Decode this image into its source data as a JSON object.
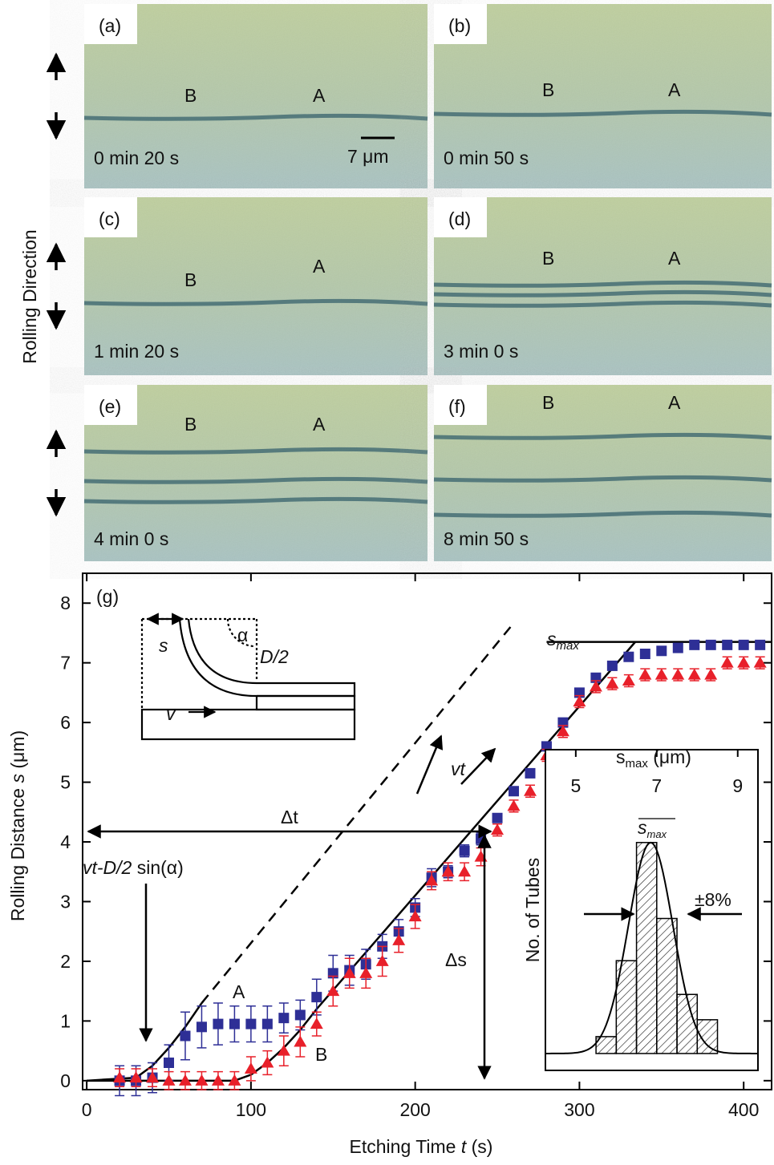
{
  "figure": {
    "side_label": "Rolling Direction",
    "panels": [
      {
        "label": "(a)",
        "time": "0 min 20 s",
        "markers": [
          "B",
          "A"
        ],
        "scale": "7 μm"
      },
      {
        "label": "(b)",
        "time": "0 min 50 s",
        "markers": [
          "B",
          "A"
        ]
      },
      {
        "label": "(c)",
        "time": "1 min 20 s",
        "markers": [
          "B",
          "A"
        ]
      },
      {
        "label": "(d)",
        "time": "3 min 0 s",
        "markers": [
          "B",
          "A"
        ]
      },
      {
        "label": "(e)",
        "time": "4 min 0 s",
        "markers": [
          "B",
          "A"
        ]
      },
      {
        "label": "(f)",
        "time": "8 min 50 s",
        "markers": [
          "B",
          "A"
        ]
      }
    ]
  },
  "schematic": {
    "s": "s",
    "alpha": "α",
    "half_d": "D/2",
    "v": "v"
  },
  "chart_data": [
    {
      "type": "scatter",
      "panel_label": "(g)",
      "xlabel": [
        "Etching Time ",
        "t",
        " (s)"
      ],
      "ylabel": [
        "Rolling Distance ",
        "s",
        " (μm)"
      ],
      "xlim": [
        -2.5,
        417
      ],
      "ylim": [
        -0.15,
        8.5
      ],
      "xticks": [
        0,
        100,
        200,
        300,
        400
      ],
      "yticks": [
        0,
        1,
        2,
        3,
        4,
        5,
        6,
        7,
        8
      ],
      "x": [
        20,
        30,
        40,
        50,
        60,
        70,
        80,
        90,
        100,
        110,
        120,
        130,
        140,
        150,
        160,
        170,
        180,
        190,
        200,
        210,
        220,
        230,
        240,
        250,
        260,
        270,
        280,
        290,
        300,
        310,
        320,
        330,
        340,
        350,
        360,
        370,
        380,
        390,
        400,
        410
      ],
      "series": [
        {
          "name": "A",
          "color": "#2e2f96",
          "marker": "square",
          "values": [
            0,
            0,
            0.05,
            0.3,
            0.75,
            0.9,
            0.95,
            0.95,
            0.95,
            0.95,
            1.05,
            1.1,
            1.4,
            1.8,
            1.85,
            1.95,
            2.25,
            2.5,
            2.9,
            3.4,
            3.5,
            3.85,
            4.05,
            4.4,
            4.85,
            5.15,
            5.6,
            6.0,
            6.5,
            6.75,
            6.95,
            7.1,
            7.15,
            7.2,
            7.25,
            7.3,
            7.3,
            7.3,
            7.3,
            7.3
          ],
          "errors": [
            0.25,
            0.25,
            0.25,
            0.3,
            0.4,
            0.35,
            0.35,
            0.3,
            0.3,
            0.3,
            0.25,
            0.25,
            0.3,
            0.3,
            0.25,
            0.25,
            0.2,
            0.2,
            0.15,
            0.15,
            0.1,
            0.1,
            0.1,
            0.05,
            0.05,
            0.05,
            0.05,
            0.05,
            0.05,
            0.05,
            0.05,
            0.05,
            0.05,
            0.05,
            0.05,
            0.05,
            0.05,
            0.05,
            0.05,
            0.05
          ]
        },
        {
          "name": "B",
          "color": "#e8202a",
          "marker": "triangle",
          "values": [
            0.05,
            0.05,
            0.05,
            0,
            0,
            0,
            0,
            0,
            0.2,
            0.3,
            0.5,
            0.65,
            0.95,
            1.5,
            1.8,
            1.8,
            2.0,
            2.35,
            2.75,
            3.35,
            3.5,
            3.5,
            3.75,
            4.2,
            4.6,
            4.85,
            5.45,
            5.85,
            6.35,
            6.6,
            6.65,
            6.7,
            6.8,
            6.8,
            6.8,
            6.8,
            6.8,
            7.0,
            7.0,
            7.0
          ],
          "errors": [
            0.15,
            0.15,
            0.15,
            0.15,
            0.15,
            0.15,
            0.15,
            0.15,
            0.2,
            0.2,
            0.25,
            0.25,
            0.2,
            0.25,
            0.25,
            0.25,
            0.25,
            0.2,
            0.2,
            0.15,
            0.15,
            0.15,
            0.15,
            0.1,
            0.1,
            0.1,
            0.1,
            0.1,
            0.1,
            0.1,
            0.1,
            0.1,
            0.1,
            0.1,
            0.1,
            0.1,
            0.1,
            0.1,
            0.1,
            0.1
          ]
        }
      ],
      "lines": [
        {
          "x": [
            0,
            30,
            40,
            50,
            60,
            70
          ],
          "y": [
            0,
            0.05,
            0.25,
            0.55,
            0.9,
            1.3
          ],
          "dash": false
        },
        {
          "x": [
            70,
            258
          ],
          "y": [
            1.3,
            7.6
          ],
          "dash": true
        },
        {
          "x": [
            0,
            90,
            100,
            110,
            120,
            130,
            140,
            334
          ],
          "y": [
            0,
            0,
            0.1,
            0.3,
            0.55,
            0.85,
            1.2,
            7.35
          ],
          "dash": false
        },
        {
          "x": [
            280,
            417
          ],
          "y": [
            7.35,
            7.35
          ],
          "dash": false
        }
      ],
      "annotations": {
        "s_max": [
          "s",
          "max"
        ],
        "delta_t": "Δt",
        "delta_s": "Δs",
        "vt": "vt",
        "offset": [
          "vt-D/2",
          " sin(α)"
        ]
      }
    },
    {
      "type": "histogram",
      "xlabel": [
        "s",
        "max",
        " (μm)"
      ],
      "ylabel": "No. of Tubes",
      "xlim": [
        4.25,
        9.5
      ],
      "ylim": [
        -2,
        36
      ],
      "xticks": [
        5,
        7,
        9
      ],
      "bins": [
        5.5,
        6,
        6.5,
        7,
        7.5,
        8,
        8.5
      ],
      "counts": [
        2,
        11,
        25,
        16,
        7,
        4
      ],
      "fit": {
        "mean": 6.85,
        "sd": 0.55,
        "peak": 25
      },
      "annotations": {
        "mean": [
          "s",
          "max"
        ],
        "spread": "±8%"
      }
    }
  ]
}
